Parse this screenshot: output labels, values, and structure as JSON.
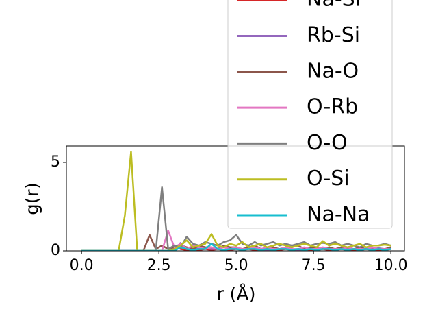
{
  "chart_data": {
    "type": "line",
    "x_label": "r (Å)",
    "y_label": "g(r)",
    "x": [
      0.0,
      0.2,
      0.4,
      0.6,
      0.8,
      1.0,
      1.2,
      1.4,
      1.6,
      1.8,
      2.0,
      2.2,
      2.4,
      2.6,
      2.8,
      3.0,
      3.2,
      3.4,
      3.6,
      3.8,
      4.0,
      4.2,
      4.4,
      4.6,
      4.8,
      5.0,
      5.2,
      5.4,
      5.6,
      5.8,
      6.0,
      6.2,
      6.4,
      6.6,
      6.8,
      7.0,
      7.2,
      7.4,
      7.6,
      7.8,
      8.0,
      8.2,
      8.4,
      8.6,
      8.8,
      9.0,
      9.2,
      9.4,
      9.6,
      9.8,
      10.0
    ],
    "xlim": [
      -0.49,
      10.44
    ],
    "ylim": [
      0,
      5.93
    ],
    "xticks": [
      {
        "value": 0,
        "label": "0.0"
      },
      {
        "value": 2.5,
        "label": "2.5"
      },
      {
        "value": 5,
        "label": "5.0"
      },
      {
        "value": 7.5,
        "label": "7.5"
      },
      {
        "value": 10,
        "label": "10.0"
      }
    ],
    "yticks": [
      0,
      5
    ],
    "legend": "upper right",
    "series": [
      {
        "name": "Na-Si",
        "color": "#d62728",
        "values": [
          0,
          0,
          0,
          0,
          0,
          0,
          0,
          0,
          0,
          0,
          0,
          0,
          0,
          0,
          0,
          0.3,
          0.1,
          0.05,
          0.1,
          0.05,
          0.1,
          0.05,
          0.1,
          0.05,
          0.05,
          0.1,
          0.05,
          0.1,
          0.05,
          0.05,
          0.1,
          0.05,
          0.05,
          0.1,
          0.05,
          0.05,
          0.1,
          0.05,
          0.05,
          0.1,
          0.05,
          0.05,
          0.1,
          0.05,
          0.05,
          0.05,
          0.1,
          0.05,
          0.05,
          0.05,
          0.1
        ]
      },
      {
        "name": "Rb-Si",
        "color": "#9467bd",
        "values": [
          0,
          0,
          0,
          0,
          0,
          0,
          0,
          0,
          0,
          0,
          0,
          0,
          0,
          0,
          0,
          0,
          0.45,
          0.1,
          0.2,
          0.1,
          0.15,
          0.1,
          0.1,
          0.2,
          0.1,
          0.1,
          0.1,
          0.15,
          0.1,
          0.1,
          0.05,
          0.1,
          0.1,
          0.15,
          0.1,
          0.05,
          0.1,
          0.1,
          0.1,
          0.15,
          0.1,
          0.05,
          0.1,
          0.1,
          0.1,
          0.05,
          0.1,
          0.1,
          0.15,
          0.1,
          0.1
        ]
      },
      {
        "name": "Na-O",
        "color": "#8c564b",
        "values": [
          0,
          0,
          0,
          0,
          0,
          0,
          0,
          0,
          0,
          0,
          0,
          0.9,
          0.1,
          0.3,
          0.1,
          0.2,
          0.3,
          0.2,
          0.1,
          0.3,
          0.2,
          0.2,
          0.1,
          0.3,
          0.2,
          0.2,
          0.1,
          0.2,
          0.3,
          0.1,
          0.2,
          0.2,
          0.1,
          0.2,
          0.2,
          0.3,
          0.1,
          0.2,
          0.2,
          0.1,
          0.2,
          0.1,
          0.2,
          0.2,
          0.1,
          0.2,
          0.1,
          0.2,
          0.1,
          0.1,
          0.2
        ]
      },
      {
        "name": "O-Rb",
        "color": "#e377c2",
        "values": [
          0,
          0,
          0,
          0,
          0,
          0,
          0,
          0,
          0,
          0,
          0,
          0,
          0,
          0,
          1.15,
          0.2,
          0.4,
          0.1,
          0.3,
          0.2,
          0.1,
          0.2,
          0.1,
          0.2,
          0.1,
          0.2,
          0.1,
          0.1,
          0.2,
          0.1,
          0.2,
          0.1,
          0.1,
          0.2,
          0.1,
          0.1,
          0.2,
          0.1,
          0.1,
          0.2,
          0.1,
          0.1,
          0.1,
          0.2,
          0.1,
          0.1,
          0.1,
          0.2,
          0.1,
          0.1,
          0.1
        ]
      },
      {
        "name": "O-O",
        "color": "#7f7f7f",
        "values": [
          0,
          0,
          0,
          0,
          0,
          0,
          0,
          0,
          0,
          0,
          0,
          0,
          0,
          3.6,
          0.1,
          0.3,
          0.2,
          0.8,
          0.4,
          0.3,
          0.5,
          0.4,
          0.3,
          0.5,
          0.6,
          0.9,
          0.4,
          0.3,
          0.5,
          0.3,
          0.4,
          0.5,
          0.3,
          0.4,
          0.3,
          0.4,
          0.5,
          0.3,
          0.4,
          0.45,
          0.4,
          0.5,
          0.3,
          0.4,
          0.3,
          0.2,
          0.4,
          0.3,
          0.3,
          0.4,
          0.3
        ]
      },
      {
        "name": "O-Si",
        "color": "#bcbd22",
        "values": [
          0,
          0,
          0,
          0,
          0,
          0,
          0,
          2.0,
          5.6,
          0,
          0,
          0,
          0,
          0,
          0,
          0.1,
          0.3,
          0.6,
          0.2,
          0.3,
          0.4,
          0.95,
          0.3,
          0.2,
          0.4,
          0.3,
          0.5,
          0.2,
          0.3,
          0.4,
          0.2,
          0.3,
          0.4,
          0.3,
          0.2,
          0.3,
          0.4,
          0.3,
          0.2,
          0.55,
          0.3,
          0.4,
          0.3,
          0.2,
          0.3,
          0.4,
          0.2,
          0.3,
          0.3,
          0.35,
          0.3
        ]
      },
      {
        "name": "Na-Na",
        "color": "#17becf",
        "values": [
          0,
          0,
          0,
          0,
          0,
          0,
          0,
          0,
          0,
          0,
          0,
          0,
          0,
          0,
          0,
          0,
          0.2,
          0.1,
          0.05,
          0.1,
          0.1,
          0.4,
          0.1,
          0.05,
          0.1,
          0.1,
          0.05,
          0.1,
          0.1,
          0.05,
          0.1,
          0.05,
          0.1,
          0.1,
          0.05,
          0.1,
          0.05,
          0.1,
          0.05,
          0.1,
          0.1,
          0.05,
          0.1,
          0.05,
          0.1,
          0.05,
          0.1,
          0.05,
          0.1,
          0.05,
          0.1
        ]
      }
    ]
  }
}
